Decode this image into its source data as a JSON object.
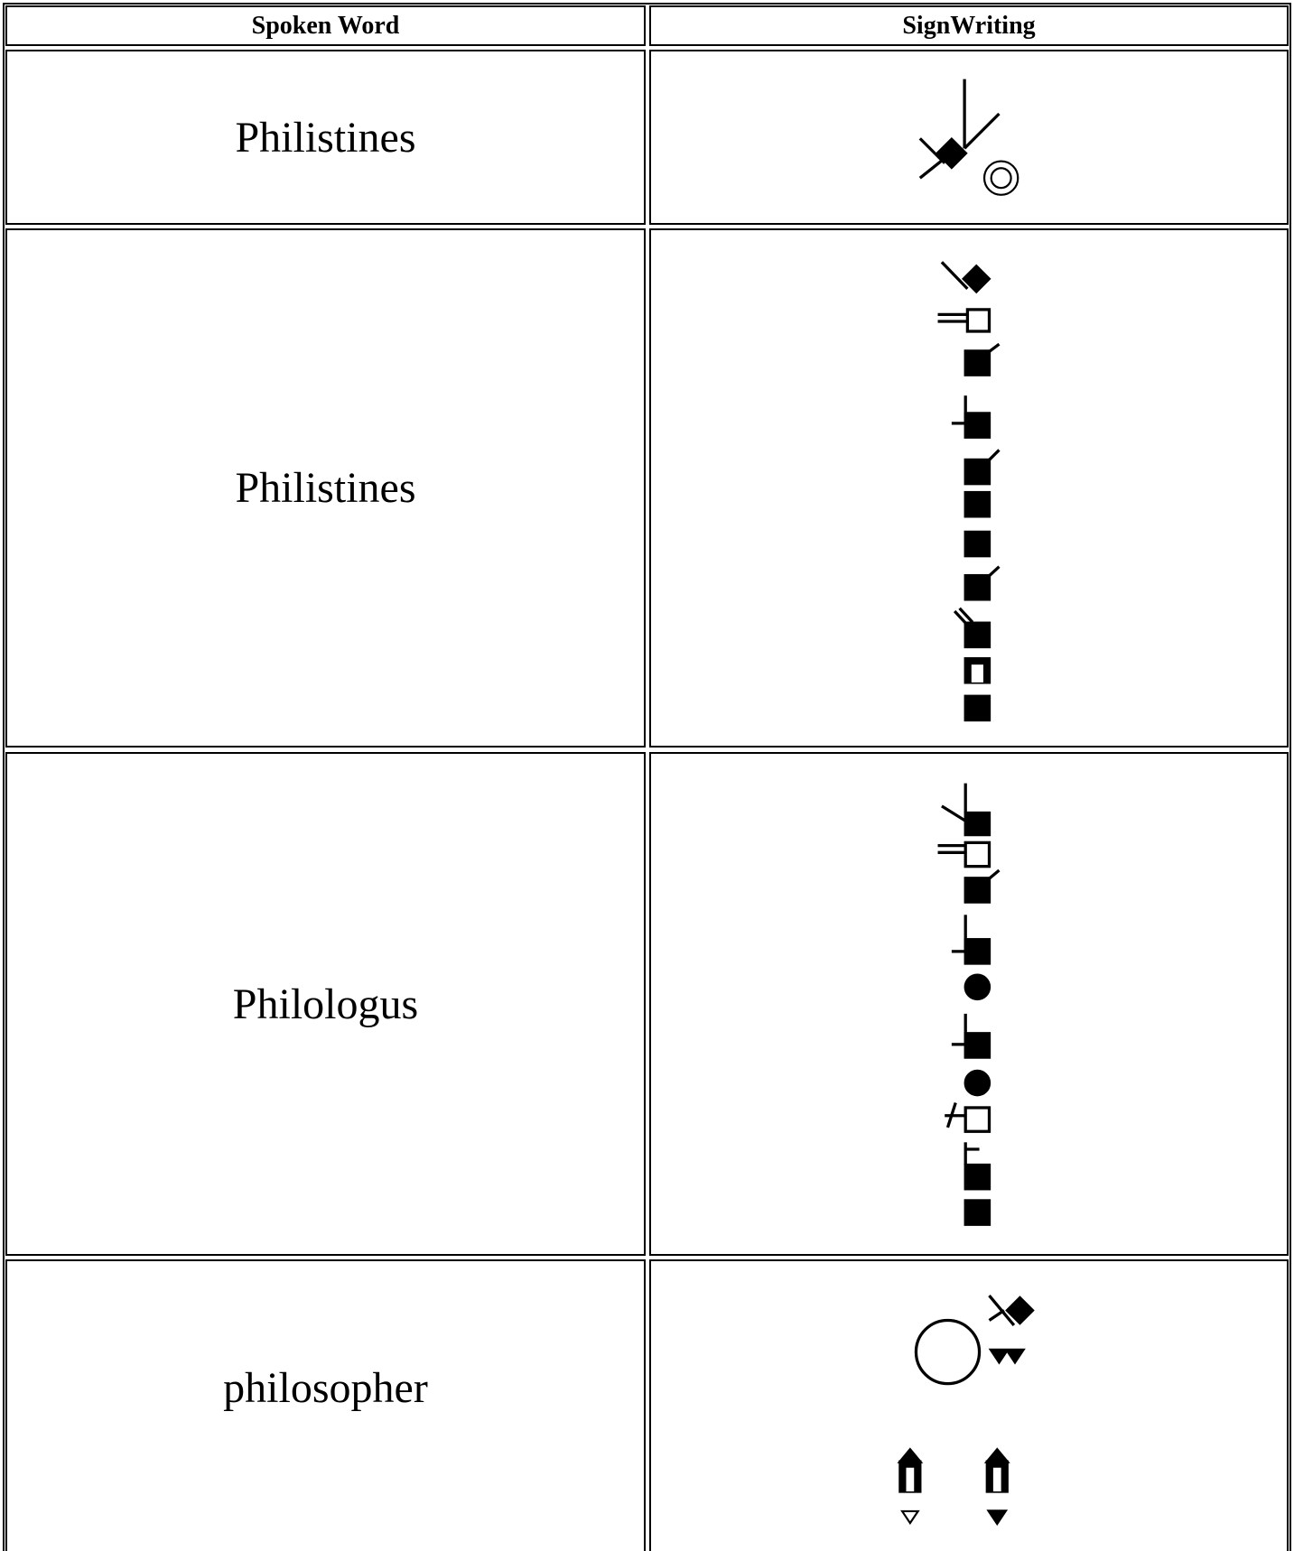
{
  "table": {
    "header": [
      "Spoken Word",
      "SignWriting"
    ],
    "rows": [
      [
        "Philistines"
      ],
      [
        "Philistines"
      ],
      [
        "Philologus"
      ],
      [
        "philosopher"
      ]
    ]
  }
}
